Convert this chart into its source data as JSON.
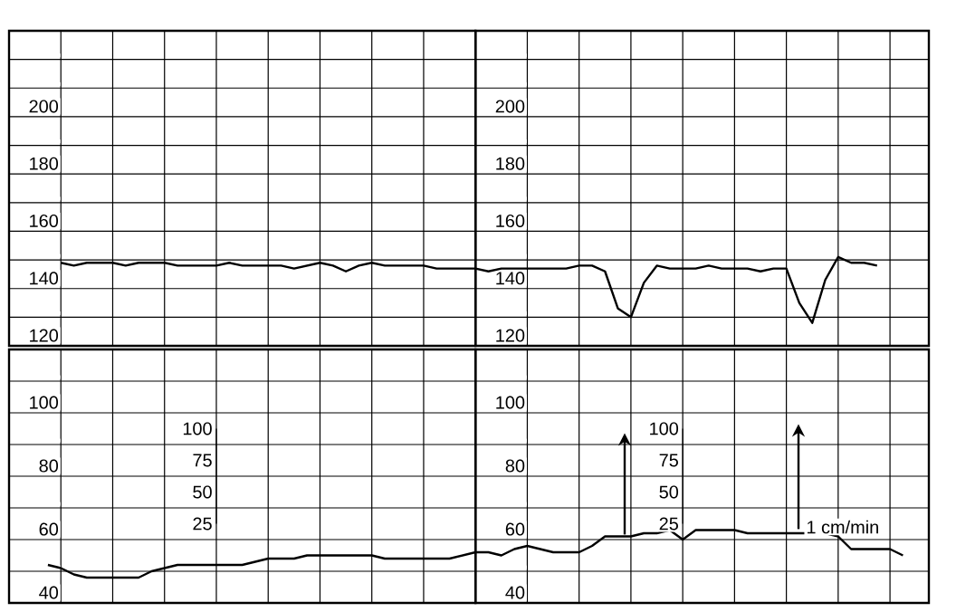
{
  "chart_data": [
    {
      "type": "line",
      "categories": [
        null,
        null,
        null,
        null,
        null,
        null,
        null,
        null,
        null,
        null,
        null,
        null,
        null,
        null,
        null,
        null,
        null,
        null,
        null,
        null,
        null,
        null,
        null,
        null,
        null,
        null,
        null,
        null,
        null,
        null,
        null,
        null,
        null,
        null,
        null,
        null,
        null
      ],
      "series": [
        {
          "color": "#000000",
          "values": [
            null,
            null,
            null,
            null,
            149,
            148,
            149,
            149,
            149,
            148,
            149,
            149,
            149,
            148,
            148,
            148,
            148,
            149,
            148,
            148,
            148,
            148,
            147,
            148,
            149,
            148,
            146,
            148,
            149,
            148,
            148,
            148,
            148,
            147,
            147,
            147,
            147
          ]
        }
      ],
      "ylim": [
        120,
        230
      ],
      "yticks": [
        120,
        {
          "value": 130,
          "label": null
        },
        140,
        {
          "value": 150,
          "label": null
        },
        160,
        {
          "value": 170,
          "label": null
        },
        180,
        {
          "value": 190,
          "label": null
        },
        200,
        {
          "value": 210,
          "label": null
        },
        {
          "value": 220,
          "label": null
        }
      ],
      "grid": true,
      "tick_labels": "y"
    },
    {
      "type": "line",
      "categories": [
        null,
        null,
        null,
        null,
        null,
        null,
        null,
        null,
        null,
        null,
        null,
        null,
        null,
        null,
        null,
        null,
        null,
        null,
        null,
        null,
        null,
        null,
        null,
        null,
        null,
        null,
        null,
        null,
        null,
        null,
        null,
        null,
        null,
        null,
        null,
        null
      ],
      "series": [
        {
          "color": "#000000",
          "values": [
            147,
            146,
            147,
            147,
            147,
            147,
            147,
            147,
            148,
            148,
            146,
            133,
            130,
            142,
            148,
            147,
            147,
            147,
            148,
            147,
            147,
            147,
            146,
            147,
            147,
            135,
            128,
            143,
            151,
            149,
            149,
            148,
            null,
            null,
            null,
            null
          ]
        }
      ],
      "ylim": [
        120,
        230
      ],
      "yticks": [
        120,
        {
          "value": 130,
          "label": null
        },
        140,
        {
          "value": 150,
          "label": null
        },
        160,
        {
          "value": 170,
          "label": null
        },
        180,
        {
          "value": 190,
          "label": null
        },
        200,
        {
          "value": 210,
          "label": null
        },
        {
          "value": 220,
          "label": null
        }
      ],
      "grid": true,
      "tick_labels": "y"
    },
    {
      "type": "line",
      "categories": [
        null,
        null,
        null,
        null,
        null,
        null,
        null,
        null,
        null,
        null,
        null,
        null,
        null,
        null,
        null,
        null,
        null,
        null,
        null,
        null,
        null,
        null,
        null,
        null,
        null,
        null,
        null,
        null,
        null,
        null,
        null,
        null,
        null,
        null,
        null,
        null,
        null
      ],
      "series": [
        {
          "color": "#000000",
          "values": [
            null,
            null,
            null,
            52,
            51,
            49,
            48,
            48,
            48,
            48,
            48,
            50,
            51,
            52,
            52,
            52,
            52,
            52,
            52,
            53,
            54,
            54,
            54,
            55,
            55,
            55,
            55,
            55,
            55,
            54,
            54,
            54,
            54,
            54,
            54,
            55,
            56
          ]
        }
      ],
      "ylim": [
        40,
        120
      ],
      "yticks": [
        40,
        {
          "value": 50,
          "label": null
        },
        60,
        {
          "value": 70,
          "label": null
        },
        80,
        {
          "value": 90,
          "label": null
        },
        100,
        {
          "value": 110,
          "label": null
        }
      ],
      "y2lim": [
        25,
        100
      ],
      "y2ticks": [
        25,
        50,
        75,
        100
      ],
      "grid": true,
      "tick_labels": "y"
    },
    {
      "type": "line",
      "categories": [
        null,
        null,
        null,
        null,
        null,
        null,
        null,
        null,
        null,
        null,
        null,
        null,
        null,
        null,
        null,
        null,
        null,
        null,
        null,
        null,
        null,
        null,
        null,
        null,
        null,
        null,
        null,
        null,
        null,
        null,
        null,
        null,
        null,
        null,
        null,
        null
      ],
      "series": [
        {
          "color": "#000000",
          "values": [
            56,
            56,
            55,
            57,
            58,
            57,
            56,
            56,
            56,
            58,
            61,
            61,
            61,
            62,
            62,
            63,
            60,
            63,
            63,
            63,
            63,
            62,
            62,
            62,
            62,
            62,
            62,
            62,
            61,
            57,
            57,
            57,
            57,
            55,
            null,
            null
          ]
        }
      ],
      "ylim": [
        40,
        120
      ],
      "yticks": [
        40,
        {
          "value": 50,
          "label": null
        },
        60,
        {
          "value": 70,
          "label": null
        },
        80,
        {
          "value": 90,
          "label": null
        },
        100,
        {
          "value": 110,
          "label": null
        }
      ],
      "y2lim": [
        25,
        100
      ],
      "y2ticks": [
        25,
        50,
        75,
        100
      ],
      "annotations": [
        "1 cm/min"
      ],
      "grid": true,
      "tick_labels": "y"
    }
  ]
}
